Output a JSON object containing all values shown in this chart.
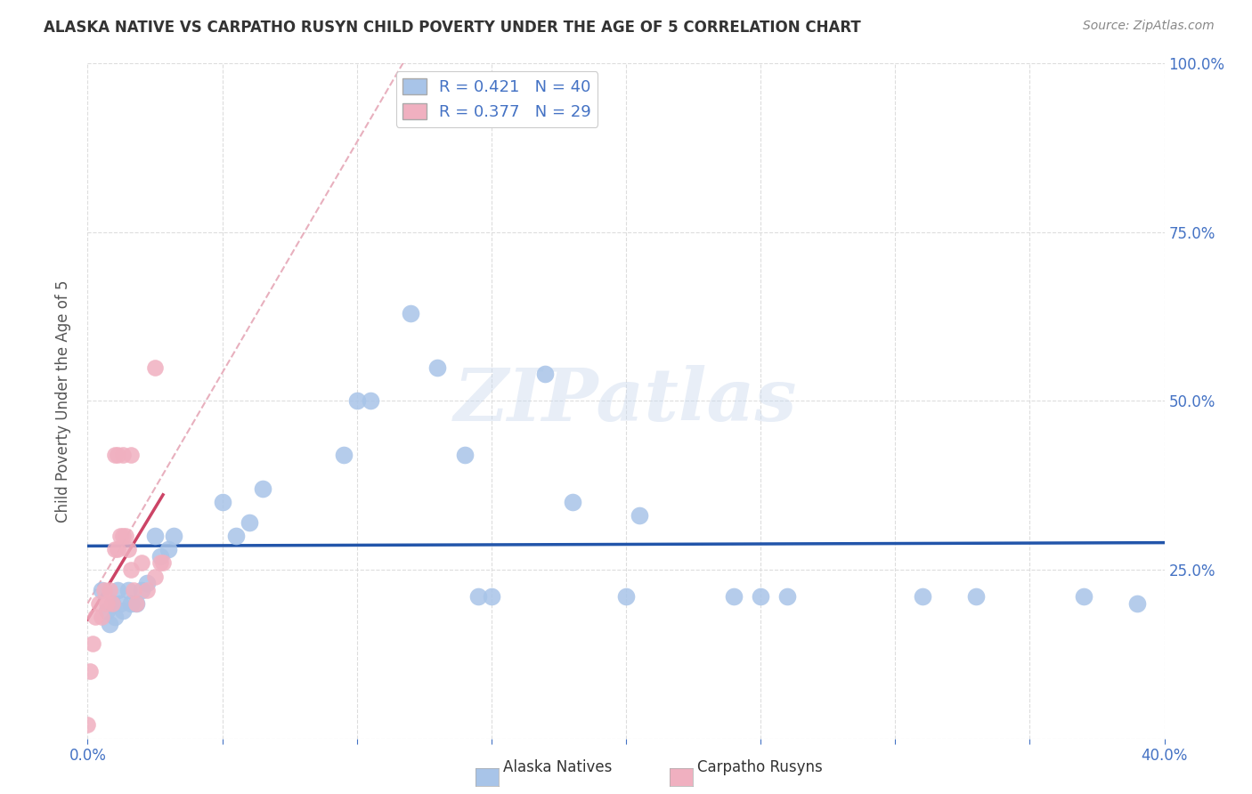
{
  "title": "ALASKA NATIVE VS CARPATHO RUSYN CHILD POVERTY UNDER THE AGE OF 5 CORRELATION CHART",
  "source": "Source: ZipAtlas.com",
  "ylabel": "Child Poverty Under the Age of 5",
  "xlim": [
    0.0,
    0.4
  ],
  "ylim": [
    0.0,
    1.0
  ],
  "alaska_color": "#a8c4e8",
  "carpatho_color": "#f0b0c0",
  "alaska_line_color": "#2255aa",
  "carpatho_line_color": "#cc4466",
  "dashed_line_color": "#e8b0be",
  "tick_color": "#4472c4",
  "legend_text_color": "#4472c4",
  "R_alaska": 0.421,
  "N_alaska": 40,
  "R_carpatho": 0.377,
  "N_carpatho": 29,
  "watermark": "ZIPatlas",
  "alaska_x": [
    0.005,
    0.007,
    0.008,
    0.009,
    0.01,
    0.011,
    0.012,
    0.013,
    0.015,
    0.016,
    0.018,
    0.02,
    0.022,
    0.025,
    0.027,
    0.03,
    0.032,
    0.05,
    0.055,
    0.06,
    0.065,
    0.095,
    0.1,
    0.105,
    0.12,
    0.13,
    0.14,
    0.145,
    0.15,
    0.17,
    0.18,
    0.2,
    0.205,
    0.24,
    0.25,
    0.26,
    0.31,
    0.33,
    0.37,
    0.39
  ],
  "alaska_y": [
    0.22,
    0.19,
    0.17,
    0.2,
    0.18,
    0.22,
    0.2,
    0.19,
    0.22,
    0.2,
    0.2,
    0.22,
    0.23,
    0.3,
    0.27,
    0.28,
    0.3,
    0.35,
    0.3,
    0.32,
    0.37,
    0.42,
    0.5,
    0.5,
    0.63,
    0.55,
    0.42,
    0.21,
    0.21,
    0.54,
    0.35,
    0.21,
    0.33,
    0.21,
    0.21,
    0.21,
    0.21,
    0.21,
    0.21,
    0.2
  ],
  "carpatho_x": [
    0.0,
    0.001,
    0.002,
    0.003,
    0.004,
    0.005,
    0.006,
    0.007,
    0.008,
    0.009,
    0.01,
    0.011,
    0.012,
    0.013,
    0.014,
    0.015,
    0.016,
    0.017,
    0.018,
    0.02,
    0.022,
    0.025,
    0.027,
    0.028,
    0.01,
    0.011,
    0.013,
    0.016,
    0.025
  ],
  "carpatho_y": [
    0.02,
    0.1,
    0.14,
    0.18,
    0.2,
    0.18,
    0.22,
    0.2,
    0.22,
    0.2,
    0.28,
    0.28,
    0.3,
    0.3,
    0.3,
    0.28,
    0.25,
    0.22,
    0.2,
    0.26,
    0.22,
    0.24,
    0.26,
    0.26,
    0.42,
    0.42,
    0.42,
    0.42,
    0.55
  ],
  "background_color": "#ffffff",
  "grid_color": "#dddddd"
}
